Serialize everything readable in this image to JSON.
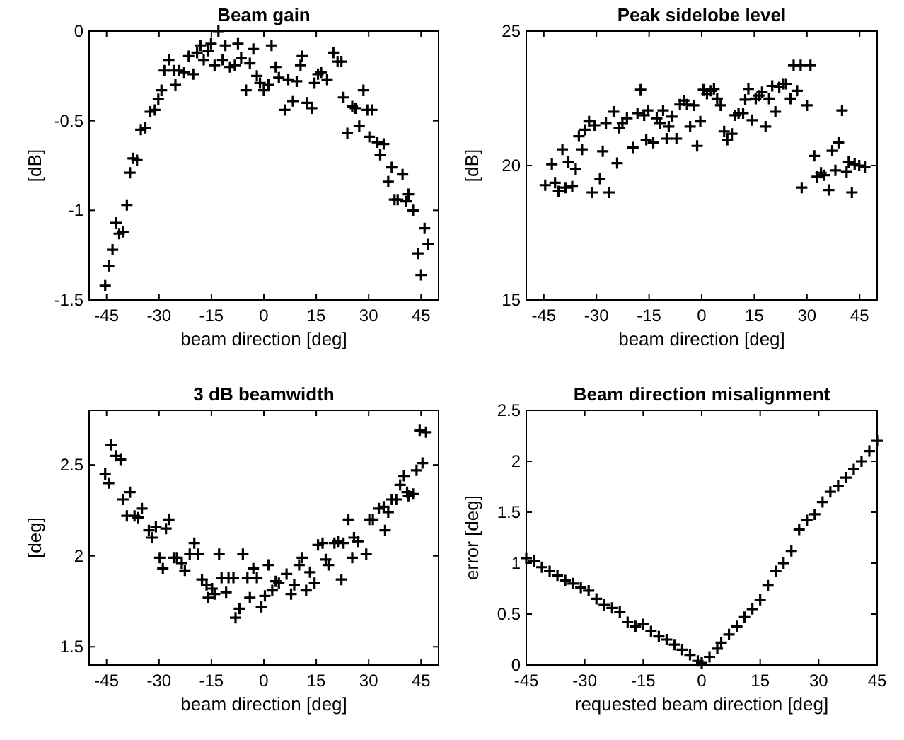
{
  "chart_data": [
    {
      "type": "scatter",
      "title": "Beam gain",
      "xlabel": "beam direction [deg]",
      "ylabel": "[dB]",
      "marker": "cross",
      "color": "#000000",
      "xlim": [
        -50,
        50
      ],
      "ylim": [
        -1.5,
        0
      ],
      "xticks": [
        -45,
        -30,
        -15,
        0,
        15,
        30,
        45
      ],
      "yticks": [
        -1.5,
        -1,
        -0.5,
        0
      ],
      "x": [
        -45.4,
        -44.4,
        -43.3,
        -42.3,
        -41.4,
        -40.3,
        -39.2,
        -38.3,
        -37.4,
        -36.3,
        -35.2,
        -33.9,
        -32.5,
        -31.2,
        -30.2,
        -29.3,
        -28.5,
        -27.2,
        -25.8,
        -25.3,
        -24.2,
        -22.8,
        -21.5,
        -20.2,
        -19.1,
        -18.1,
        -17.2,
        -15.9,
        -15.1,
        -14.1,
        -13.0,
        -11.8,
        -11.0,
        -9.7,
        -8.3,
        -7.4,
        -6.5,
        -5.1,
        -4.0,
        -3.0,
        -2.0,
        -1.1,
        0,
        1.3,
        2.2,
        3.4,
        4.3,
        6.0,
        7.0,
        8.3,
        9.4,
        10.5,
        11.0,
        12.4,
        13.7,
        14.5,
        15.5,
        16.4,
        18.1,
        19.9,
        21.1,
        22.2,
        22.8,
        23.9,
        25.3,
        26.2,
        27.3,
        28.5,
        29.6,
        30.9,
        30.2,
        32.5,
        33.3,
        34.3,
        35.6,
        36.6,
        37.4,
        38.3,
        39.7,
        40.7,
        41.4,
        42.7,
        44.1,
        45.0,
        46.0,
        47.0
      ],
      "values": [
        -1.42,
        -1.31,
        -1.22,
        -1.07,
        -1.13,
        -1.12,
        -0.97,
        -0.79,
        -0.71,
        -0.72,
        -0.55,
        -0.54,
        -0.45,
        -0.44,
        -0.38,
        -0.33,
        -0.22,
        -0.16,
        -0.22,
        -0.3,
        -0.22,
        -0.23,
        -0.14,
        -0.24,
        -0.12,
        -0.08,
        -0.16,
        -0.11,
        -0.07,
        -0.19,
        0,
        -0.16,
        -0.08,
        -0.2,
        -0.19,
        -0.07,
        -0.15,
        -0.33,
        -0.18,
        -0.1,
        -0.25,
        -0.29,
        -0.33,
        -0.3,
        -0.08,
        -0.2,
        -0.26,
        -0.44,
        -0.27,
        -0.39,
        -0.28,
        -0.19,
        -0.14,
        -0.4,
        -0.43,
        -0.29,
        -0.24,
        -0.23,
        -0.27,
        -0.12,
        -0.17,
        -0.17,
        -0.37,
        -0.57,
        -0.42,
        -0.43,
        -0.53,
        -0.33,
        -0.44,
        -0.44,
        -0.59,
        -0.62,
        -0.69,
        -0.63,
        -0.84,
        -0.76,
        -0.94,
        -0.94,
        -0.8,
        -0.95,
        -0.91,
        -1.0,
        -1.24,
        -1.36,
        -1.1,
        -1.19
      ]
    },
    {
      "type": "scatter",
      "title": "Peak sidelobe level",
      "xlabel": "beam direction [deg]",
      "ylabel": "[dB]",
      "marker": "cross",
      "color": "#000000",
      "xlim": [
        -50,
        50
      ],
      "ylim": [
        15,
        25
      ],
      "xticks": [
        -45,
        -30,
        -15,
        0,
        15,
        30,
        45
      ],
      "yticks": [
        15,
        20,
        25
      ],
      "x": [
        -44.6,
        -42.7,
        -41.8,
        -40.8,
        -39.7,
        -38.8,
        -38.0,
        -36.9,
        -35.9,
        -35.0,
        -34.1,
        -33.3,
        -32.1,
        -31.2,
        -30.5,
        -29.0,
        -28.2,
        -27.3,
        -26.4,
        -25.1,
        -24.1,
        -23.5,
        -22.6,
        -21.3,
        -19.6,
        -18.3,
        -17.4,
        -16.4,
        -15.4,
        -15.8,
        -13.8,
        -12.8,
        -11.9,
        -11.0,
        -10.0,
        -9.4,
        -8.5,
        -7.2,
        -6.2,
        -5.1,
        -4.2,
        -3.3,
        -2.3,
        -1.3,
        -0.4,
        0.5,
        1.5,
        2.6,
        3.5,
        4.4,
        5.4,
        6.4,
        7.3,
        8.6,
        9.5,
        10.5,
        11.8,
        12.4,
        13.3,
        14.4,
        15.4,
        16.3,
        17.2,
        18.2,
        19.2,
        20.1,
        21.0,
        22.1,
        23.1,
        24.0,
        25.3,
        26.2,
        27.2,
        28.2,
        28.5,
        30.0,
        31.0,
        32.1,
        32.9,
        34.0,
        34.9,
        36.2,
        37.2,
        38.1,
        39.0,
        40.0,
        41.3,
        41.9,
        42.8,
        43.6,
        44.9,
        46.5
      ],
      "values": [
        19.27,
        20.05,
        19.36,
        19.04,
        20.6,
        19.18,
        20.13,
        19.22,
        19.87,
        21.09,
        20.6,
        21.33,
        21.64,
        19.0,
        21.5,
        19.51,
        20.53,
        21.58,
        19.0,
        22.0,
        20.09,
        21.4,
        21.58,
        21.76,
        20.67,
        21.95,
        22.82,
        21.87,
        22.05,
        20.96,
        20.85,
        21.76,
        21.58,
        22.05,
        21.0,
        21.45,
        21.82,
        21.0,
        22.27,
        22.42,
        22.27,
        21.45,
        22.24,
        20.73,
        21.64,
        22.82,
        22.67,
        22.78,
        22.85,
        22.49,
        22.24,
        21.27,
        20.96,
        21.18,
        21.87,
        21.95,
        21.95,
        22.45,
        22.85,
        21.69,
        22.49,
        22.6,
        22.73,
        21.45,
        22.49,
        22.96,
        22.0,
        22.91,
        23.04,
        23.04,
        22.49,
        23.73,
        22.78,
        23.73,
        19.18,
        22.24,
        23.73,
        20.36,
        19.58,
        19.73,
        19.64,
        19.09,
        20.55,
        19.82,
        20.85,
        22.05,
        19.76,
        20.13,
        19.0,
        20.05,
        20.0,
        19.95
      ]
    },
    {
      "type": "scatter",
      "title": "3 dB beamwidth",
      "xlabel": "beam direction [deg]",
      "ylabel": "[deg]",
      "marker": "cross",
      "color": "#000000",
      "xlim": [
        -50,
        50
      ],
      "ylim": [
        1.4,
        2.8
      ],
      "xticks": [
        -45,
        -30,
        -15,
        0,
        15,
        30,
        45
      ],
      "yticks": [
        1.5,
        2,
        2.5
      ],
      "x": [
        -45.4,
        -44.4,
        -43.7,
        -42.3,
        -41.0,
        -40.3,
        -38.3,
        -39.2,
        -37.0,
        -36.0,
        -34.9,
        -32.9,
        -32.0,
        -30.9,
        -29.8,
        -28.9,
        -28.0,
        -27.2,
        -25.8,
        -24.9,
        -23.5,
        -22.6,
        -21.2,
        -19.9,
        -18.8,
        -17.7,
        -16.4,
        -15.9,
        -14.8,
        -14.1,
        -12.8,
        -12.1,
        -10.8,
        -10.1,
        -8.7,
        -8.1,
        -7.0,
        -6.0,
        -4.7,
        -4.0,
        -3.0,
        -2.0,
        -0.7,
        0.3,
        1.3,
        2.4,
        3.4,
        4.3,
        6.5,
        7.8,
        8.7,
        10.1,
        11.0,
        12.1,
        13.2,
        14.5,
        15.5,
        16.8,
        17.7,
        18.5,
        20.2,
        21.2,
        22.2,
        22.8,
        24.2,
        25.3,
        25.8,
        26.9,
        29.3,
        30.2,
        31.2,
        32.9,
        34.7,
        34.3,
        35.6,
        36.6,
        37.9,
        39.0,
        40.1,
        41.0,
        41.4,
        42.7,
        43.7,
        45.4,
        44.6,
        46.4
      ],
      "values": [
        2.45,
        2.4,
        2.61,
        2.55,
        2.53,
        2.31,
        2.35,
        2.22,
        2.22,
        2.21,
        2.26,
        2.14,
        2.1,
        2.16,
        1.99,
        1.93,
        2.15,
        2.2,
        1.99,
        1.99,
        1.96,
        1.92,
        2.01,
        2.07,
        2.01,
        1.87,
        1.84,
        1.77,
        1.82,
        1.79,
        2.01,
        1.88,
        1.8,
        1.88,
        1.88,
        1.66,
        1.71,
        2.01,
        1.88,
        1.77,
        1.93,
        1.88,
        1.72,
        1.78,
        1.95,
        1.81,
        1.86,
        1.85,
        1.9,
        1.79,
        1.84,
        1.95,
        1.99,
        1.81,
        1.91,
        1.85,
        2.06,
        2.07,
        1.98,
        1.95,
        2.07,
        2.08,
        1.87,
        2.07,
        2.2,
        1.99,
        2.1,
        2.08,
        2.01,
        2.2,
        2.2,
        2.26,
        2.14,
        2.27,
        2.24,
        2.31,
        2.31,
        2.39,
        2.44,
        2.35,
        2.33,
        2.34,
        2.47,
        2.51,
        2.69,
        2.68
      ]
    },
    {
      "type": "scatter",
      "title": "Beam direction misalignment",
      "xlabel": "requested beam direction [deg]",
      "ylabel": "error [deg]",
      "marker": "cross",
      "color": "#000000",
      "xlim": [
        -45,
        45
      ],
      "ylim": [
        0,
        2.5
      ],
      "xticks": [
        -45,
        -30,
        -15,
        0,
        15,
        30,
        45
      ],
      "yticks": [
        0,
        0.5,
        1,
        1.5,
        2,
        2.5
      ],
      "x": [
        -45,
        -43,
        -41,
        -39,
        -37,
        -35,
        -33,
        -31,
        -29,
        -27,
        -25,
        -23,
        -21,
        -19,
        -17,
        -15,
        -13,
        -11,
        -9,
        -7,
        -5,
        -3,
        -1,
        0,
        2,
        4,
        5,
        7,
        9,
        11,
        13,
        15,
        17,
        19,
        21,
        23,
        25,
        27,
        29,
        31,
        33,
        35,
        37,
        39,
        41,
        43,
        45
      ],
      "values": [
        1.05,
        1.02,
        0.96,
        0.92,
        0.88,
        0.83,
        0.8,
        0.76,
        0.73,
        0.65,
        0.59,
        0.56,
        0.52,
        0.42,
        0.38,
        0.4,
        0.33,
        0.28,
        0.25,
        0.2,
        0.15,
        0.1,
        0.04,
        0.02,
        0.08,
        0.16,
        0.22,
        0.3,
        0.38,
        0.47,
        0.55,
        0.64,
        0.78,
        0.92,
        1.0,
        1.12,
        1.33,
        1.42,
        1.48,
        1.6,
        1.7,
        1.76,
        1.84,
        1.92,
        2.0,
        2.1,
        2.2
      ]
    }
  ]
}
